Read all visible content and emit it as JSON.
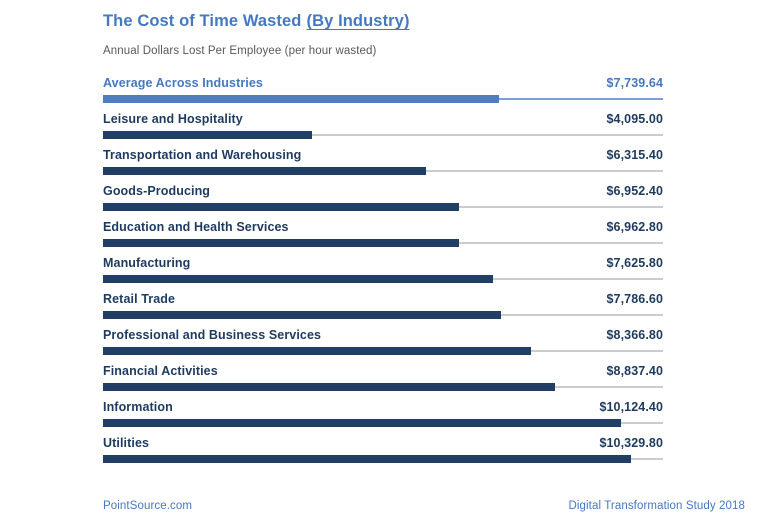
{
  "page": {
    "title_main": "The Cost of Time Wasted",
    "title_emphasis": "(By Industry)",
    "subtitle": "Annual Dollars Lost Per Employee (per hour wasted)",
    "footer_left": "PointSource.com",
    "footer_right": "Digital Transformation Study 2018"
  },
  "colors": {
    "accent_blue": "#4678bf",
    "navy_text": "#1e3a5f",
    "bar_navy": "#213e66",
    "avg_bar_blue": "#4f7dc0",
    "avg_track_blue": "#7da0d4",
    "track_gray": "#cccccc"
  },
  "chart_data": {
    "type": "bar",
    "orientation": "horizontal",
    "title": "The Cost of Time Wasted (By Industry)",
    "subtitle": "Annual Dollars Lost Per Employee (per hour wasted)",
    "value_axis_max": 10950,
    "grid": false,
    "legend": false,
    "rows": [
      {
        "label": "Average Across Industries",
        "value": 7739.64,
        "display": "$7,739.64",
        "highlight": true
      },
      {
        "label": "Leisure and Hospitality",
        "value": 4095.0,
        "display": "$4,095.00",
        "highlight": false
      },
      {
        "label": "Transportation and Warehousing",
        "value": 6315.4,
        "display": "$6,315.40",
        "highlight": false
      },
      {
        "label": "Goods-Producing",
        "value": 6952.4,
        "display": "$6,952.40",
        "highlight": false
      },
      {
        "label": "Education and Health Services",
        "value": 6962.8,
        "display": "$6,962.80",
        "highlight": false
      },
      {
        "label": "Manufacturing",
        "value": 7625.8,
        "display": "$7,625.80",
        "highlight": false
      },
      {
        "label": "Retail Trade",
        "value": 7786.6,
        "display": "$7,786.60",
        "highlight": false
      },
      {
        "label": "Professional and Business Services",
        "value": 8366.8,
        "display": "$8,366.80",
        "highlight": false
      },
      {
        "label": "Financial Activities",
        "value": 8837.4,
        "display": "$8,837.40",
        "highlight": false
      },
      {
        "label": "Information",
        "value": 10124.4,
        "display": "$10,124.40",
        "highlight": false
      },
      {
        "label": "Utilities",
        "value": 10329.8,
        "display": "$10,329.80",
        "highlight": false
      }
    ]
  }
}
